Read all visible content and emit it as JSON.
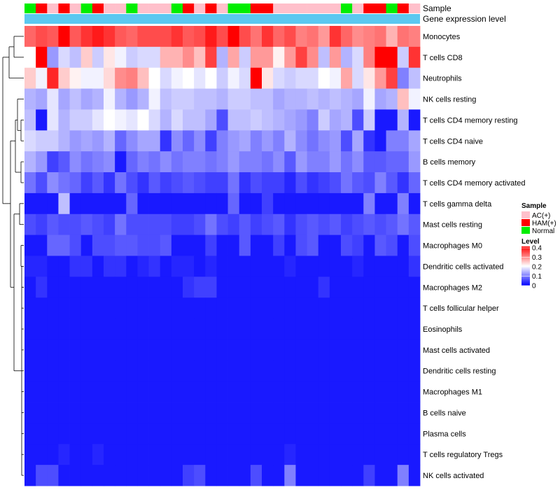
{
  "chart_data": {
    "type": "heatmap",
    "title": "",
    "annotation_labels": {
      "sample": "Sample",
      "expression": "Gene expression level"
    },
    "sample_groups": [
      "Normal",
      "HAM(+)",
      "AC(+)",
      "HAM(+)",
      "AC(+)",
      "Normal",
      "HAM(+)",
      "AC(+)",
      "AC(+)",
      "Normal",
      "AC(+)",
      "AC(+)",
      "AC(+)",
      "Normal",
      "HAM(+)",
      "AC(+)",
      "HAM(+)",
      "AC(+)",
      "Normal",
      "Normal",
      "HAM(+)",
      "HAM(+)",
      "AC(+)",
      "AC(+)",
      "AC(+)",
      "AC(+)",
      "AC(+)",
      "AC(+)",
      "Normal",
      "AC(+)",
      "HAM(+)",
      "HAM(+)",
      "Normal",
      "HAM(+)",
      "AC(+)"
    ],
    "rows": [
      "Monocytes",
      "T cells CD8",
      "Neutrophils",
      "NK cells resting",
      "T cells CD4 memory resting",
      "T cells CD4 naive",
      "B cells memory",
      "T cells CD4 memory activated",
      "T cells gamma delta",
      "Mast cells resting",
      "Macrophages M0",
      "Dendritic cells activated",
      "Macrophages M2",
      "T cells follicular helper",
      "Eosinophils",
      "Mast cells activated",
      "Dendritic cells resting",
      "Macrophages M1",
      "B cells naive",
      "Plasma cells",
      "T cells regulatory  Tregs",
      "NK cells activated"
    ],
    "values": [
      [
        0.32,
        0.34,
        0.33,
        0.4,
        0.33,
        0.36,
        0.38,
        0.36,
        0.33,
        0.32,
        0.34,
        0.34,
        0.34,
        0.36,
        0.33,
        0.34,
        0.38,
        0.34,
        0.4,
        0.34,
        0.31,
        0.36,
        0.32,
        0.34,
        0.3,
        0.31,
        0.28,
        0.36,
        0.32,
        0.29,
        0.3,
        0.31,
        0.26,
        0.31,
        0.3
      ],
      [
        0.2,
        0.4,
        0.12,
        0.17,
        0.15,
        0.24,
        0.16,
        0.22,
        0.19,
        0.16,
        0.17,
        0.17,
        0.26,
        0.26,
        0.29,
        0.25,
        0.35,
        0.14,
        0.27,
        0.16,
        0.28,
        0.28,
        0.21,
        0.28,
        0.35,
        0.29,
        0.15,
        0.28,
        0.14,
        0.17,
        0.3,
        0.4,
        0.4,
        0.16,
        0.36
      ],
      [
        0.24,
        0.19,
        0.37,
        0.24,
        0.21,
        0.19,
        0.19,
        0.23,
        0.29,
        0.3,
        0.25,
        0.2,
        0.17,
        0.19,
        0.2,
        0.18,
        0.2,
        0.16,
        0.19,
        0.17,
        0.4,
        0.22,
        0.17,
        0.16,
        0.17,
        0.17,
        0.2,
        0.19,
        0.27,
        0.17,
        0.22,
        0.28,
        0.35,
        0.1,
        0.15
      ],
      [
        0.14,
        0.13,
        0.18,
        0.13,
        0.15,
        0.13,
        0.14,
        0.19,
        0.14,
        0.12,
        0.14,
        0.19,
        0.15,
        0.16,
        0.16,
        0.15,
        0.15,
        0.14,
        0.16,
        0.16,
        0.15,
        0.15,
        0.13,
        0.14,
        0.14,
        0.15,
        0.14,
        0.15,
        0.14,
        0.13,
        0.19,
        0.13,
        0.14,
        0.25,
        0.19
      ],
      [
        0.15,
        0.02,
        0.18,
        0.14,
        0.16,
        0.16,
        0.18,
        0.2,
        0.19,
        0.18,
        0.2,
        0.17,
        0.14,
        0.17,
        0.15,
        0.15,
        0.13,
        0.06,
        0.15,
        0.15,
        0.16,
        0.15,
        0.14,
        0.13,
        0.12,
        0.1,
        0.16,
        0.13,
        0.14,
        0.06,
        0.16,
        0.02,
        0.02,
        0.14,
        0.02
      ],
      [
        0.17,
        0.16,
        0.16,
        0.14,
        0.12,
        0.13,
        0.12,
        0.14,
        0.08,
        0.11,
        0.13,
        0.13,
        0.04,
        0.11,
        0.08,
        0.11,
        0.05,
        0.1,
        0.12,
        0.13,
        0.1,
        0.12,
        0.1,
        0.14,
        0.11,
        0.09,
        0.11,
        0.12,
        0.06,
        0.13,
        0.04,
        0.02,
        0.1,
        0.1,
        0.13
      ],
      [
        0.14,
        0.12,
        0.05,
        0.07,
        0.11,
        0.09,
        0.1,
        0.11,
        0.02,
        0.08,
        0.1,
        0.09,
        0.11,
        0.09,
        0.1,
        0.1,
        0.09,
        0.1,
        0.12,
        0.1,
        0.1,
        0.09,
        0.11,
        0.07,
        0.12,
        0.1,
        0.1,
        0.12,
        0.09,
        0.11,
        0.07,
        0.07,
        0.08,
        0.08,
        0.12
      ],
      [
        0.09,
        0.06,
        0.11,
        0.09,
        0.08,
        0.05,
        0.07,
        0.04,
        0.09,
        0.06,
        0.04,
        0.07,
        0.05,
        0.06,
        0.07,
        0.06,
        0.05,
        0.05,
        0.09,
        0.04,
        0.06,
        0.05,
        0.05,
        0.03,
        0.06,
        0.04,
        0.05,
        0.06,
        0.09,
        0.07,
        0.06,
        0.1,
        0.07,
        0.04,
        0.08
      ],
      [
        0.02,
        0.02,
        0.02,
        0.15,
        0.02,
        0.02,
        0.02,
        0.02,
        0.02,
        0.08,
        0.02,
        0.02,
        0.02,
        0.02,
        0.02,
        0.02,
        0.02,
        0.02,
        0.08,
        0.02,
        0.02,
        0.05,
        0.02,
        0.02,
        0.02,
        0.02,
        0.02,
        0.02,
        0.02,
        0.02,
        0.1,
        0.02,
        0.02,
        0.1,
        0.02
      ],
      [
        0.06,
        0.05,
        0.07,
        0.06,
        0.06,
        0.07,
        0.06,
        0.05,
        0.09,
        0.06,
        0.06,
        0.06,
        0.06,
        0.05,
        0.05,
        0.06,
        0.09,
        0.06,
        0.05,
        0.07,
        0.05,
        0.06,
        0.07,
        0.04,
        0.06,
        0.07,
        0.06,
        0.07,
        0.05,
        0.06,
        0.07,
        0.06,
        0.07,
        0.09,
        0.07
      ],
      [
        0.02,
        0.02,
        0.08,
        0.08,
        0.06,
        0.02,
        0.06,
        0.06,
        0.07,
        0.07,
        0.06,
        0.06,
        0.07,
        0.02,
        0.02,
        0.02,
        0.05,
        0.02,
        0.02,
        0.07,
        0.02,
        0.02,
        0.05,
        0.02,
        0.06,
        0.07,
        0.02,
        0.02,
        0.06,
        0.05,
        0.02,
        0.07,
        0.06,
        0.02,
        0.06
      ],
      [
        0.03,
        0.03,
        0.02,
        0.02,
        0.04,
        0.04,
        0.02,
        0.04,
        0.04,
        0.02,
        0.03,
        0.04,
        0.02,
        0.03,
        0.03,
        0.02,
        0.03,
        0.02,
        0.02,
        0.02,
        0.02,
        0.02,
        0.02,
        0.03,
        0.02,
        0.02,
        0.02,
        0.02,
        0.02,
        0.03,
        0.02,
        0.02,
        0.02,
        0.02,
        0.04
      ],
      [
        0.02,
        0.04,
        0.02,
        0.02,
        0.02,
        0.02,
        0.02,
        0.02,
        0.02,
        0.02,
        0.02,
        0.02,
        0.02,
        0.02,
        0.04,
        0.05,
        0.05,
        0.02,
        0.02,
        0.02,
        0.02,
        0.02,
        0.02,
        0.02,
        0.02,
        0.02,
        0.04,
        0.02,
        0.02,
        0.02,
        0.02,
        0.02,
        0.02,
        0.02,
        0.02
      ],
      [
        0.02,
        0.02,
        0.02,
        0.02,
        0.02,
        0.02,
        0.02,
        0.02,
        0.02,
        0.02,
        0.02,
        0.02,
        0.02,
        0.02,
        0.02,
        0.02,
        0.02,
        0.02,
        0.02,
        0.02,
        0.02,
        0.02,
        0.02,
        0.02,
        0.02,
        0.02,
        0.02,
        0.02,
        0.02,
        0.02,
        0.02,
        0.02,
        0.02,
        0.02,
        0.02
      ],
      [
        0.02,
        0.02,
        0.02,
        0.02,
        0.02,
        0.02,
        0.02,
        0.02,
        0.02,
        0.02,
        0.02,
        0.02,
        0.02,
        0.02,
        0.02,
        0.02,
        0.02,
        0.02,
        0.02,
        0.02,
        0.02,
        0.02,
        0.02,
        0.02,
        0.02,
        0.02,
        0.02,
        0.02,
        0.02,
        0.02,
        0.02,
        0.02,
        0.02,
        0.02,
        0.02
      ],
      [
        0.02,
        0.02,
        0.02,
        0.02,
        0.02,
        0.02,
        0.02,
        0.02,
        0.02,
        0.02,
        0.02,
        0.02,
        0.02,
        0.02,
        0.02,
        0.02,
        0.02,
        0.02,
        0.02,
        0.02,
        0.02,
        0.02,
        0.02,
        0.02,
        0.02,
        0.02,
        0.02,
        0.02,
        0.02,
        0.02,
        0.02,
        0.02,
        0.02,
        0.02,
        0.02
      ],
      [
        0.02,
        0.02,
        0.02,
        0.02,
        0.02,
        0.02,
        0.02,
        0.02,
        0.02,
        0.02,
        0.02,
        0.02,
        0.02,
        0.02,
        0.02,
        0.02,
        0.02,
        0.02,
        0.02,
        0.02,
        0.02,
        0.02,
        0.02,
        0.02,
        0.02,
        0.02,
        0.02,
        0.02,
        0.02,
        0.02,
        0.02,
        0.02,
        0.02,
        0.02,
        0.02
      ],
      [
        0.02,
        0.02,
        0.02,
        0.02,
        0.02,
        0.02,
        0.02,
        0.02,
        0.02,
        0.02,
        0.02,
        0.02,
        0.02,
        0.02,
        0.02,
        0.02,
        0.02,
        0.02,
        0.02,
        0.02,
        0.02,
        0.02,
        0.02,
        0.02,
        0.02,
        0.02,
        0.02,
        0.02,
        0.02,
        0.02,
        0.02,
        0.02,
        0.02,
        0.02,
        0.02
      ],
      [
        0.02,
        0.02,
        0.02,
        0.02,
        0.02,
        0.02,
        0.02,
        0.02,
        0.02,
        0.02,
        0.02,
        0.02,
        0.02,
        0.02,
        0.02,
        0.02,
        0.02,
        0.02,
        0.02,
        0.02,
        0.02,
        0.02,
        0.02,
        0.02,
        0.02,
        0.02,
        0.02,
        0.02,
        0.02,
        0.02,
        0.02,
        0.02,
        0.02,
        0.02,
        0.02
      ],
      [
        0.02,
        0.02,
        0.02,
        0.02,
        0.02,
        0.02,
        0.02,
        0.02,
        0.02,
        0.02,
        0.02,
        0.02,
        0.02,
        0.02,
        0.02,
        0.02,
        0.02,
        0.02,
        0.02,
        0.02,
        0.02,
        0.02,
        0.02,
        0.02,
        0.02,
        0.02,
        0.02,
        0.02,
        0.02,
        0.02,
        0.02,
        0.02,
        0.02,
        0.02,
        0.02
      ],
      [
        0.02,
        0.02,
        0.02,
        0.03,
        0.02,
        0.02,
        0.03,
        0.02,
        0.02,
        0.02,
        0.02,
        0.02,
        0.02,
        0.02,
        0.02,
        0.02,
        0.02,
        0.02,
        0.02,
        0.02,
        0.02,
        0.02,
        0.02,
        0.03,
        0.02,
        0.02,
        0.02,
        0.02,
        0.02,
        0.02,
        0.02,
        0.02,
        0.02,
        0.02,
        0.02
      ],
      [
        0.02,
        0.06,
        0.06,
        0.02,
        0.02,
        0.02,
        0.02,
        0.02,
        0.02,
        0.02,
        0.02,
        0.02,
        0.02,
        0.02,
        0.05,
        0.06,
        0.02,
        0.02,
        0.02,
        0.02,
        0.06,
        0.02,
        0.02,
        0.1,
        0.02,
        0.02,
        0.02,
        0.02,
        0.02,
        0.02,
        0.05,
        0.02,
        0.02,
        0.1,
        0.02
      ]
    ],
    "color_scale": {
      "min": 0,
      "max": 0.4,
      "stops": [
        {
          "value": 0,
          "color": "#0000ff"
        },
        {
          "value": 0.2,
          "color": "#ffffff"
        },
        {
          "value": 0.4,
          "color": "#ff0000"
        }
      ]
    },
    "legend": {
      "sample_title": "Sample",
      "sample_entries": [
        {
          "label": "AC(+)",
          "color": "#ffc0cb"
        },
        {
          "label": "HAM(+)",
          "color": "#ff0000"
        },
        {
          "label": "Normal",
          "color": "#00ee00"
        }
      ],
      "level_title": "Level",
      "level_ticks": [
        "0.4",
        "0.3",
        "0.2",
        "0.1",
        "0"
      ],
      "placement": "right"
    },
    "expression_bar_color": "#5bc8f0"
  }
}
